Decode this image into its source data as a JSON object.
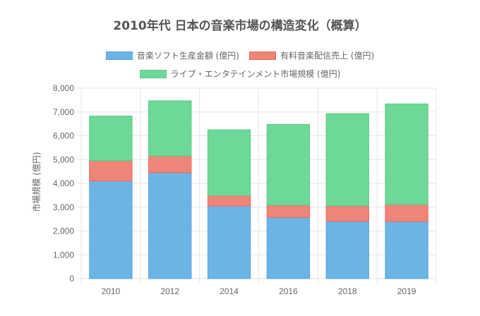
{
  "chart_data": {
    "type": "bar",
    "stacked": true,
    "title": "2010年代 日本の音楽市場の構造変化（概算）",
    "xlabel": "",
    "ylabel": "市場規模 (億円)",
    "categories": [
      "2010",
      "2012",
      "2014",
      "2016",
      "2018",
      "2019"
    ],
    "ylim": [
      0,
      8000
    ],
    "yticks": [
      0,
      1000,
      2000,
      3000,
      4000,
      5000,
      6000,
      7000,
      8000
    ],
    "ytick_labels": [
      "0",
      "1,000",
      "2,000",
      "3,000",
      "4,000",
      "5,000",
      "6,000",
      "7,000",
      "8,000"
    ],
    "grid": true,
    "legend_position": "top",
    "series": [
      {
        "name": "音楽ソフト生産金額 (億円)",
        "color": "#6cb4e6",
        "border": "#5aa3dc",
        "values": [
          4100,
          4450,
          3050,
          2570,
          2410,
          2400
        ]
      },
      {
        "name": "有料音楽配信売上 (億円)",
        "color": "#ef8479",
        "border": "#e66a5e",
        "values": [
          850,
          700,
          440,
          520,
          650,
          710
        ]
      },
      {
        "name": "ライブ・エンタテインメント市場規模 (億円)",
        "color": "#6ed898",
        "border": "#5ccb87",
        "values": [
          1880,
          2320,
          2760,
          3390,
          3870,
          4230
        ]
      }
    ]
  }
}
